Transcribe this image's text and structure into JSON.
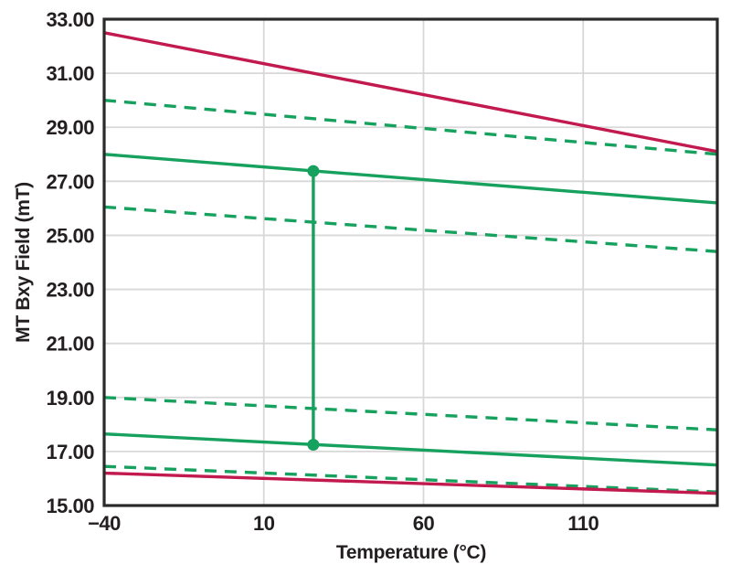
{
  "chart_data": {
    "type": "line",
    "title": "",
    "xlabel": "Temperature (°C)",
    "ylabel": "MT Bxy Field (mT)",
    "xlim": [
      -40,
      152
    ],
    "ylim": [
      15,
      33
    ],
    "x_ticks": [
      -40,
      10,
      60,
      110
    ],
    "x_tick_labels": [
      "−40",
      "10",
      "60",
      "110"
    ],
    "y_ticks": [
      33,
      31,
      29,
      27,
      25,
      23,
      21,
      19,
      17,
      15
    ],
    "y_tick_labels": [
      "33.00",
      "31.00",
      "29.00",
      "27.00",
      "25.00",
      "23.00",
      "21.00",
      "19.00",
      "17.00",
      "15.00"
    ],
    "grid": true,
    "legend_position": "none",
    "colors": {
      "red": "#C2194F",
      "green": "#17A15E",
      "grid": "#d8d8d8",
      "axis": "#2b2a2a",
      "text": "#231f20",
      "background": "#ffffff"
    },
    "series": [
      {
        "name": "upper-red-solid",
        "color": "red",
        "style": "solid",
        "x": [
          -40,
          152
        ],
        "y": [
          32.5,
          28.1
        ]
      },
      {
        "name": "upper-green-dashed",
        "color": "green",
        "style": "dashed",
        "x": [
          -40,
          152
        ],
        "y": [
          30.0,
          28.0
        ]
      },
      {
        "name": "upper-green-solid",
        "color": "green",
        "style": "solid",
        "x": [
          -40,
          152
        ],
        "y": [
          28.0,
          26.2
        ]
      },
      {
        "name": "mid-green-dashed",
        "color": "green",
        "style": "dashed",
        "x": [
          -40,
          152
        ],
        "y": [
          26.05,
          24.4
        ]
      },
      {
        "name": "lower-green-dashed-1",
        "color": "green",
        "style": "dashed",
        "x": [
          -40,
          152
        ],
        "y": [
          19.0,
          17.8
        ]
      },
      {
        "name": "lower-green-solid",
        "color": "green",
        "style": "solid",
        "x": [
          -40,
          152
        ],
        "y": [
          17.65,
          16.5
        ]
      },
      {
        "name": "lower-green-dashed-2",
        "color": "green",
        "style": "dashed",
        "x": [
          -40,
          152
        ],
        "y": [
          16.45,
          15.5
        ]
      },
      {
        "name": "lower-red-solid",
        "color": "red",
        "style": "solid",
        "x": [
          -40,
          152
        ],
        "y": [
          16.2,
          15.45
        ]
      }
    ],
    "annotation": {
      "type": "vertical-connector",
      "x": 25.5,
      "y_top": 27.38,
      "y_bottom": 17.25,
      "color": "green",
      "marker": "circle",
      "marker_radius": 6.5
    }
  }
}
